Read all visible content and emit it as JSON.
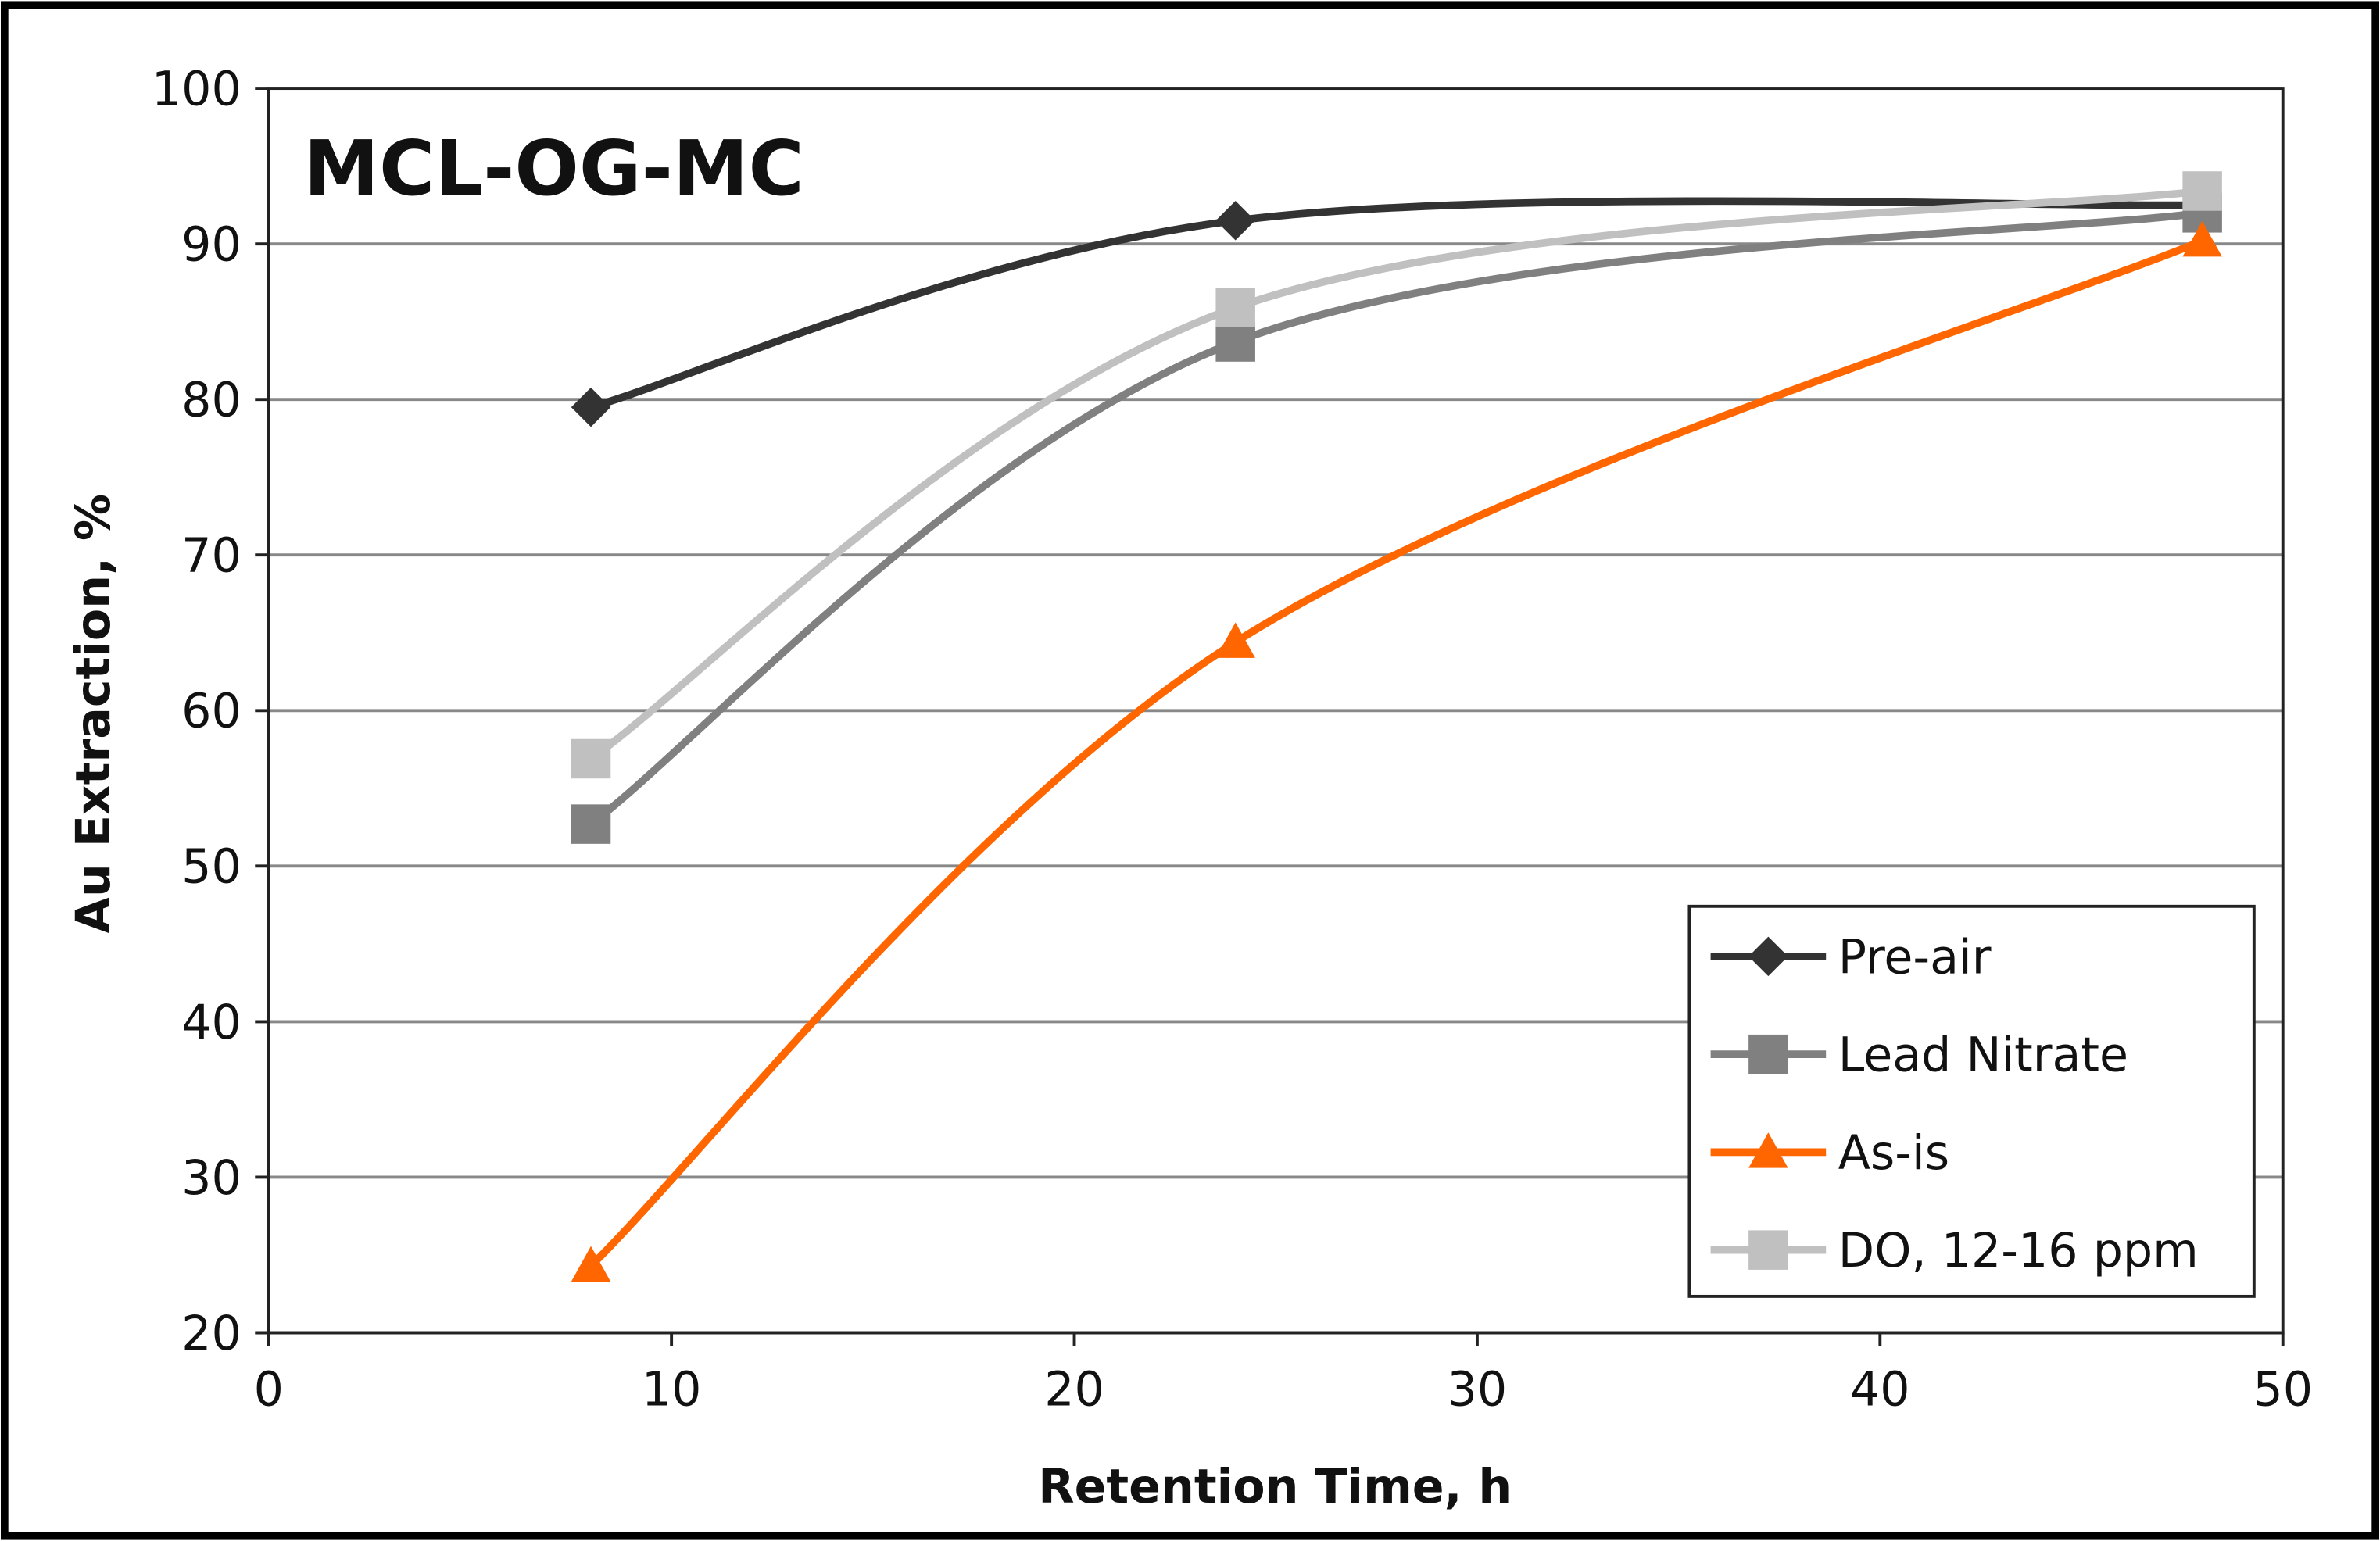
{
  "chart_data": {
    "type": "line",
    "title": "MCL-OG-MC",
    "x_label": "Retention Time, h",
    "y_label": "Au Extraction,  %",
    "x": [
      8,
      24,
      48
    ],
    "series": [
      {
        "name": "Pre-air",
        "color": "#333333",
        "marker": "diamond",
        "values": [
          79.5,
          91.5,
          92.5
        ]
      },
      {
        "name": "Lead Nitrate",
        "color": "#808080",
        "marker": "square",
        "values": [
          52.7,
          83.7,
          92
        ]
      },
      {
        "name": "As-is",
        "color": "#ff6600",
        "marker": "triangle",
        "values": [
          24.3,
          64.4,
          90.2
        ]
      },
      {
        "name": "DO, 12-16 ppm",
        "color": "#c0c0c0",
        "marker": "square",
        "values": [
          56.9,
          85.9,
          93.4
        ]
      }
    ],
    "xlim": [
      0,
      50
    ],
    "xticks": [
      0,
      10,
      20,
      30,
      40,
      50
    ],
    "ylim": [
      20,
      100
    ],
    "yticks": [
      20,
      30,
      40,
      50,
      60,
      70,
      80,
      90,
      100
    ],
    "grid": true,
    "smooth": true,
    "legend": "lower right"
  }
}
